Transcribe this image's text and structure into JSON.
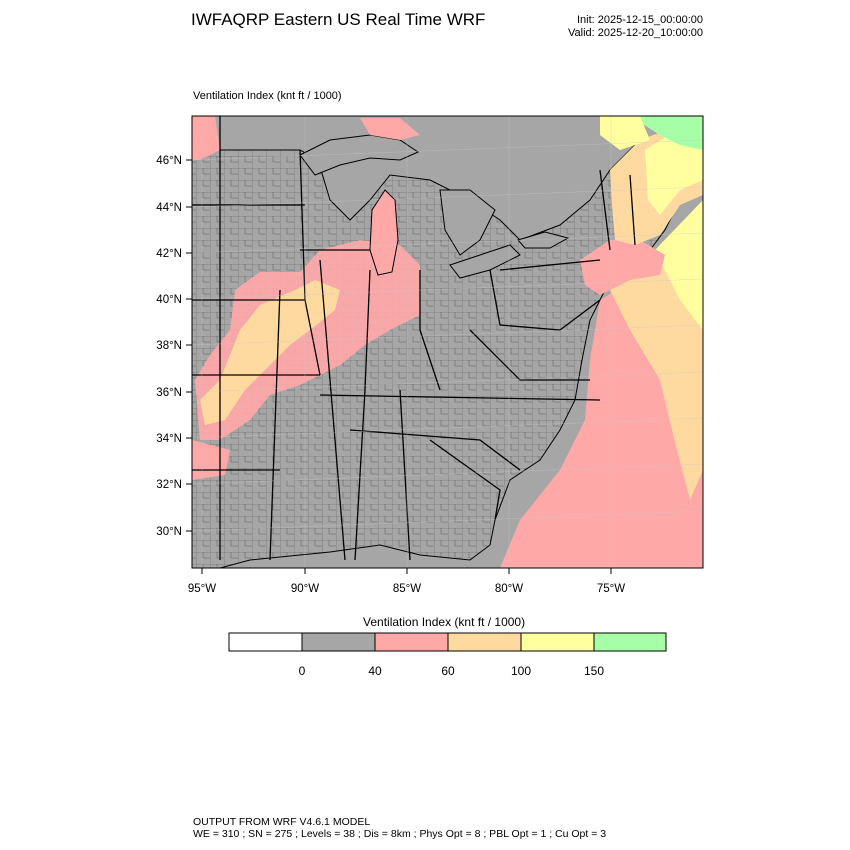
{
  "header": {
    "title": "IWFAQRP Eastern US Real Time WRF",
    "init": "Init: 2025-12-15_00:00:00",
    "valid": "Valid: 2025-12-20_10:00:00"
  },
  "map": {
    "field_label": "Ventilation Index   (knt ft / 1000)",
    "lat_labels": [
      "46°N",
      "44°N",
      "42°N",
      "40°N",
      "38°N",
      "36°N",
      "34°N",
      "32°N",
      "30°N"
    ],
    "lon_labels": [
      "95°W",
      "90°W",
      "85°W",
      "80°W",
      "75°W"
    ],
    "colors": {
      "land_low": "#a6a6a6",
      "pink": "#ffa8a8",
      "orange": "#ffdaa0",
      "yellow": "#ffffa0",
      "green": "#a6ffa6",
      "ocean_gray": "#a6a6a6"
    }
  },
  "legend": {
    "title": "Ventilation Index  (knt ft / 1000)",
    "bins": [
      {
        "color": "#ffffff"
      },
      {
        "color": "#a6a6a6"
      },
      {
        "color": "#ffa8a8"
      },
      {
        "color": "#ffdaa0"
      },
      {
        "color": "#ffffa0"
      },
      {
        "color": "#a6ffa6"
      }
    ],
    "ticks": [
      "0",
      "40",
      "60",
      "100",
      "150"
    ]
  },
  "footer": {
    "line1": "OUTPUT FROM WRF V4.6.1 MODEL",
    "line2": "WE = 310 ; SN = 275 ; Levels = 38 ; Dis = 8km ; Phys Opt = 8 ; PBL Opt = 1 ; Cu Opt = 3"
  }
}
